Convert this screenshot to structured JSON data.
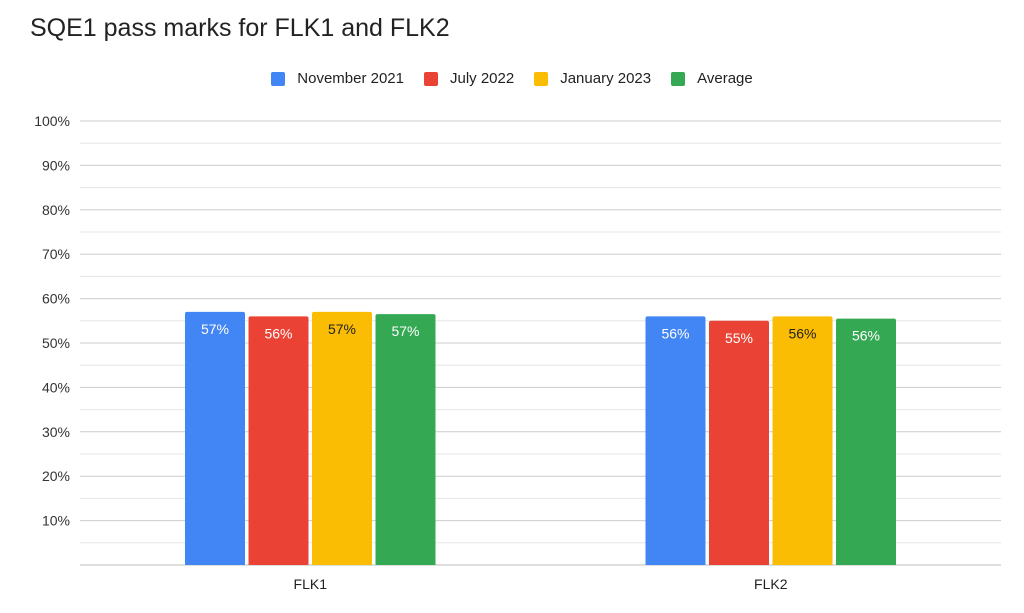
{
  "chart_data": {
    "type": "bar",
    "title": "SQE1 pass marks for FLK1 and FLK2",
    "categories": [
      "FLK1",
      "FLK2"
    ],
    "series": [
      {
        "name": "November 2021",
        "color": "#4285F4",
        "values": [
          57,
          56
        ],
        "labels": [
          "57%",
          "56%"
        ],
        "label_color": "#ffffff"
      },
      {
        "name": "July 2022",
        "color": "#EA4335",
        "values": [
          56,
          55
        ],
        "labels": [
          "56%",
          "55%"
        ],
        "label_color": "#ffffff"
      },
      {
        "name": "January 2023",
        "color": "#FBBC04",
        "values": [
          57,
          56
        ],
        "labels": [
          "57%",
          "56%"
        ],
        "label_color": "#222222"
      },
      {
        "name": "Average",
        "color": "#34A853",
        "values": [
          56.5,
          55.5
        ],
        "labels": [
          "57%",
          "56%"
        ],
        "label_color": "#ffffff"
      }
    ],
    "ylim": [
      0,
      100
    ],
    "yticks": [
      10,
      20,
      30,
      40,
      50,
      60,
      70,
      80,
      90,
      100
    ],
    "ytick_labels": [
      "10%",
      "20%",
      "30%",
      "40%",
      "50%",
      "60%",
      "70%",
      "80%",
      "90%",
      "100%"
    ],
    "grid": true,
    "legend_position": "top-center",
    "xlabel": "",
    "ylabel": ""
  }
}
